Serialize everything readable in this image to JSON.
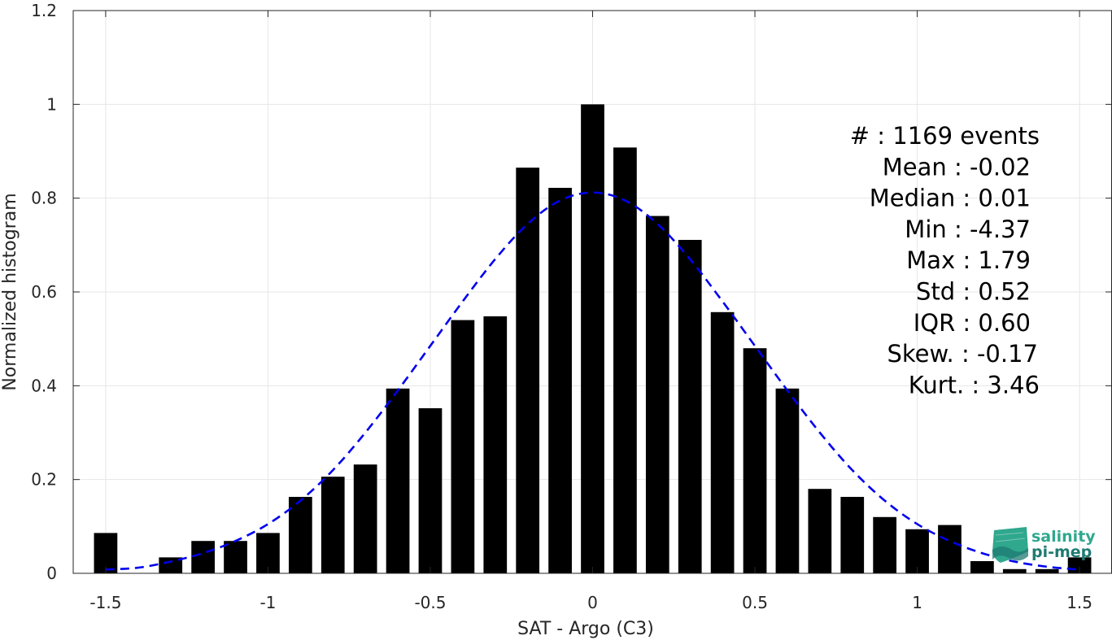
{
  "chart_data": {
    "type": "bar",
    "xlabel": "SAT - Argo (C3)",
    "ylabel": "Normalized histogram",
    "xlim": [
      -1.6,
      1.6
    ],
    "ylim": [
      0,
      1.2
    ],
    "xticks": [
      -1.5,
      -1,
      -0.5,
      0,
      0.5,
      1,
      1.5
    ],
    "xtick_labels": [
      "-1.5",
      "-1",
      "-0.5",
      "0",
      "0.5",
      "1",
      "1.5"
    ],
    "yticks": [
      0,
      0.2,
      0.4,
      0.6,
      0.8,
      1,
      1.2
    ],
    "ytick_labels": [
      "0",
      "0.2",
      "0.4",
      "0.6",
      "0.8",
      "1",
      "1.2"
    ],
    "grid": true,
    "bar_color": "#000000",
    "curve_color": "#0000ee",
    "bins": {
      "centers": [
        -1.5,
        -1.4,
        -1.3,
        -1.2,
        -1.1,
        -1.0,
        -0.9,
        -0.8,
        -0.7,
        -0.6,
        -0.5,
        -0.4,
        -0.3,
        -0.2,
        -0.1,
        0.0,
        0.1,
        0.2,
        0.3,
        0.4,
        0.5,
        0.6,
        0.7,
        0.8,
        0.9,
        1.0,
        1.1,
        1.2,
        1.3,
        1.4,
        1.5
      ],
      "values": [
        0.086,
        0.0,
        0.034,
        0.069,
        0.069,
        0.086,
        0.163,
        0.206,
        0.232,
        0.394,
        0.352,
        0.54,
        0.548,
        0.865,
        0.822,
        1.0,
        0.908,
        0.762,
        0.711,
        0.557,
        0.48,
        0.394,
        0.18,
        0.163,
        0.12,
        0.094,
        0.103,
        0.026,
        0.009,
        0.009,
        0.034
      ]
    },
    "gaussian_fit": {
      "style": "dashed",
      "x": [
        -1.5,
        -1.4,
        -1.3,
        -1.2,
        -1.1,
        -1.0,
        -0.9,
        -0.8,
        -0.7,
        -0.6,
        -0.5,
        -0.4,
        -0.3,
        -0.2,
        -0.1,
        0.0,
        0.1,
        0.2,
        0.3,
        0.4,
        0.5,
        0.6,
        0.7,
        0.8,
        0.9,
        1.0,
        1.1,
        1.2,
        1.3,
        1.4,
        1.5
      ],
      "y": [
        0.008,
        0.012,
        0.025,
        0.043,
        0.069,
        0.105,
        0.155,
        0.22,
        0.3,
        0.39,
        0.485,
        0.58,
        0.67,
        0.745,
        0.795,
        0.812,
        0.795,
        0.745,
        0.67,
        0.58,
        0.485,
        0.39,
        0.3,
        0.22,
        0.155,
        0.105,
        0.069,
        0.043,
        0.025,
        0.014,
        0.008
      ]
    }
  },
  "stats": [
    {
      "label": "#  : 1169 events"
    },
    {
      "label": "Mean : -0.02"
    },
    {
      "label": "Median : 0.01"
    },
    {
      "label": "Min : -4.37"
    },
    {
      "label": "Max : 1.79"
    },
    {
      "label": "Std : 0.52"
    },
    {
      "label": "IQR : 0.60"
    },
    {
      "label": "Skew. : -0.17"
    },
    {
      "label": "Kurt. : 3.46"
    }
  ],
  "logo": {
    "line1": "salinity",
    "line2": "pi-mep",
    "color_top": "#2fa88e",
    "color_bottom": "#1f7a72"
  }
}
